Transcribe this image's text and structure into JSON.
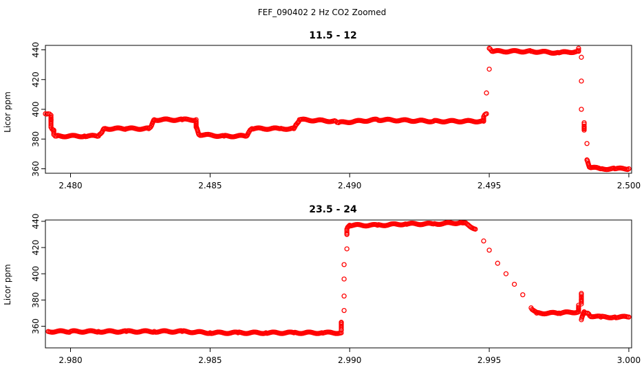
{
  "figure": {
    "suptitle": "FEF_090402  2 Hz CO2 Zoomed"
  },
  "chart_data": [
    {
      "type": "scatter",
      "title": "11.5 - 12",
      "xlabel": "",
      "ylabel": "Licor ppm",
      "xlim": [
        2.4791,
        2.5001
      ],
      "ylim": [
        357.0,
        443.0
      ],
      "xticks": [
        2.48,
        2.485,
        2.49,
        2.495,
        2.5
      ],
      "xtick_labels": [
        "2.480",
        "2.485",
        "2.490",
        "2.495",
        "2.500"
      ],
      "yticks": [
        360,
        380,
        400,
        420,
        440
      ],
      "ytick_labels": [
        "360",
        "380",
        "400",
        "420",
        "440"
      ],
      "grid": false,
      "marker": "open-circle",
      "color": "#ff0000",
      "series_points": [
        [
          2.4791,
          397
        ],
        [
          2.4792,
          397
        ],
        [
          2.4793,
          396
        ],
        [
          2.4793,
          393
        ],
        [
          2.4793,
          388
        ],
        [
          2.4794,
          386
        ],
        [
          2.4794,
          383
        ],
        [
          2.4795,
          382
        ],
        [
          2.4805,
          382
        ],
        [
          2.481,
          382
        ],
        [
          2.4811,
          384
        ],
        [
          2.4812,
          387
        ],
        [
          2.482,
          387
        ],
        [
          2.4828,
          387
        ],
        [
          2.4829,
          389
        ],
        [
          2.483,
          393
        ],
        [
          2.484,
          393
        ],
        [
          2.4845,
          393
        ],
        [
          2.4845,
          388
        ],
        [
          2.4846,
          383
        ],
        [
          2.4855,
          382
        ],
        [
          2.4863,
          382
        ],
        [
          2.4864,
          385
        ],
        [
          2.4865,
          387
        ],
        [
          2.4875,
          387
        ],
        [
          2.488,
          387
        ],
        [
          2.4881,
          390
        ],
        [
          2.4882,
          393
        ],
        [
          2.4895,
          392
        ],
        [
          2.4896,
          391
        ],
        [
          2.491,
          393
        ],
        [
          2.493,
          392
        ],
        [
          2.4948,
          392
        ],
        [
          2.4948,
          395
        ],
        [
          2.4949,
          397
        ],
        [
          2.4949,
          411
        ],
        [
          2.495,
          427
        ],
        [
          2.495,
          441
        ],
        [
          2.4951,
          439
        ],
        [
          2.4965,
          439
        ],
        [
          2.4975,
          438
        ],
        [
          2.4982,
          439
        ],
        [
          2.4982,
          441
        ],
        [
          2.4983,
          435
        ],
        [
          2.4983,
          419
        ],
        [
          2.4983,
          400
        ],
        [
          2.4984,
          391
        ],
        [
          2.4984,
          390
        ],
        [
          2.4984,
          386
        ],
        [
          2.4985,
          377
        ],
        [
          2.4985,
          366
        ],
        [
          2.4986,
          361
        ],
        [
          2.499,
          360
        ],
        [
          2.4995,
          360
        ],
        [
          2.5,
          360
        ]
      ]
    },
    {
      "type": "scatter",
      "title": "23.5 - 24",
      "xlabel": "",
      "ylabel": "Licor ppm",
      "xlim": [
        2.9791,
        3.0001
      ],
      "ylim": [
        343.5,
        441.0
      ],
      "xticks": [
        2.98,
        2.985,
        2.99,
        2.995,
        3.0
      ],
      "xtick_labels": [
        "2.980",
        "2.985",
        "2.990",
        "2.995",
        "3.000"
      ],
      "yticks": [
        360,
        380,
        400,
        420,
        440
      ],
      "ytick_labels": [
        "360",
        "380",
        "400",
        "420",
        "440"
      ],
      "grid": false,
      "marker": "open-circle",
      "color": "#ff0000",
      "series_points": [
        [
          2.9792,
          356
        ],
        [
          2.98,
          356
        ],
        [
          2.981,
          356
        ],
        [
          2.982,
          356
        ],
        [
          2.983,
          356
        ],
        [
          2.984,
          356
        ],
        [
          2.985,
          355
        ],
        [
          2.986,
          355
        ],
        [
          2.987,
          355
        ],
        [
          2.988,
          355
        ],
        [
          2.989,
          355
        ],
        [
          2.9897,
          355
        ],
        [
          2.9897,
          357
        ],
        [
          2.9897,
          363
        ],
        [
          2.9898,
          372
        ],
        [
          2.9898,
          383
        ],
        [
          2.9898,
          396
        ],
        [
          2.9898,
          407
        ],
        [
          2.9899,
          419
        ],
        [
          2.9899,
          430
        ],
        [
          2.9899,
          434
        ],
        [
          2.99,
          437
        ],
        [
          2.991,
          437
        ],
        [
          2.992,
          438
        ],
        [
          2.993,
          438
        ],
        [
          2.994,
          439
        ],
        [
          2.9942,
          438
        ],
        [
          2.9945,
          434
        ],
        [
          2.9948,
          425
        ],
        [
          2.995,
          418
        ],
        [
          2.9953,
          408
        ],
        [
          2.9956,
          400
        ],
        [
          2.9959,
          392
        ],
        [
          2.9962,
          384
        ],
        [
          2.9965,
          374
        ],
        [
          2.9967,
          370
        ],
        [
          2.9975,
          370
        ],
        [
          2.9982,
          371
        ],
        [
          2.9982,
          376
        ],
        [
          2.9983,
          385
        ],
        [
          2.9983,
          380
        ],
        [
          2.9983,
          377
        ],
        [
          2.9983,
          365
        ],
        [
          2.9984,
          371
        ],
        [
          2.9985,
          370
        ],
        [
          2.9986,
          368
        ],
        [
          2.999,
          367
        ],
        [
          2.9995,
          367
        ],
        [
          3.0,
          367
        ]
      ]
    }
  ]
}
